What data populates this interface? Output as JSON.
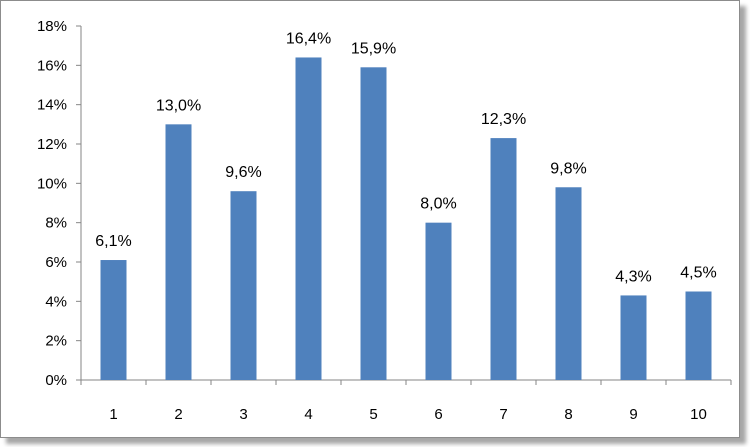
{
  "chart_data": {
    "type": "bar",
    "categories": [
      "1",
      "2",
      "3",
      "4",
      "5",
      "6",
      "7",
      "8",
      "9",
      "10"
    ],
    "values": [
      6.1,
      13.0,
      9.6,
      16.4,
      15.9,
      8.0,
      12.3,
      9.8,
      4.3,
      4.5
    ],
    "data_labels": [
      "6,1%",
      "13,0%",
      "9,6%",
      "16,4%",
      "15,9%",
      "8,0%",
      "12,3%",
      "9,8%",
      "4,3%",
      "4,5%"
    ],
    "y_ticks": [
      0,
      2,
      4,
      6,
      8,
      10,
      12,
      14,
      16,
      18
    ],
    "y_tick_labels": [
      "0%",
      "2%",
      "4%",
      "6%",
      "8%",
      "10%",
      "12%",
      "14%",
      "16%",
      "18%"
    ],
    "ylim": [
      0,
      18
    ],
    "grid": false,
    "legend": "none",
    "bar_color": "#4f81bd"
  }
}
